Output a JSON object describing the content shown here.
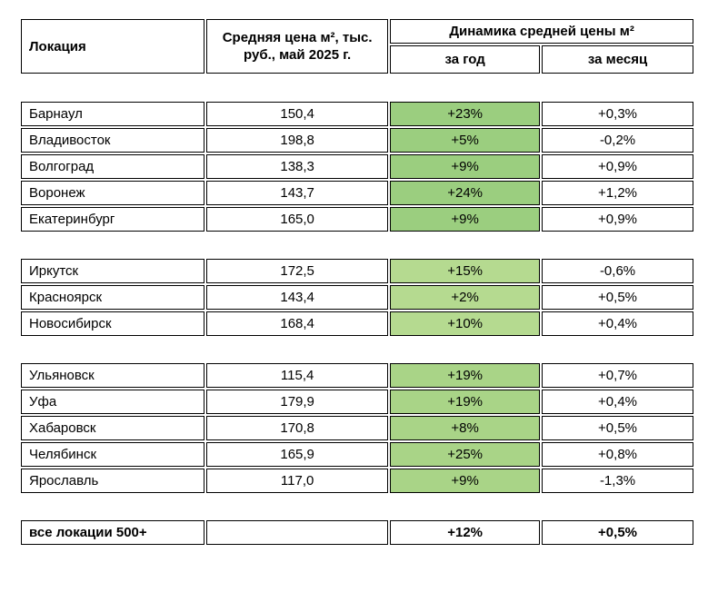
{
  "colors": {
    "border": "#000000",
    "month_yellow": "#F7E794",
    "group_greens": [
      "#9BCE7F",
      "#B5DA90",
      "#A9D487"
    ],
    "text": "#000000",
    "background": "#FFFFFF"
  },
  "chart_data": {
    "type": "table",
    "header": {
      "location": "Локация",
      "avg_price": "Средняя цена м², тыс. руб., май 2025 г.",
      "dynamics": "Динамика средней цены м²",
      "year": "за год",
      "month": "за месяц"
    },
    "groups": [
      {
        "rows": [
          {
            "location": "Барнаул",
            "price": "150,4",
            "yoy": "+23%",
            "mom": "+0,3%"
          },
          {
            "location": "Владивосток",
            "price": "198,8",
            "yoy": "+5%",
            "mom": "-0,2%"
          },
          {
            "location": "Волгоград",
            "price": "138,3",
            "yoy": "+9%",
            "mom": "+0,9%"
          },
          {
            "location": "Воронеж",
            "price": "143,7",
            "yoy": "+24%",
            "mom": "+1,2%"
          },
          {
            "location": "Екатеринбург",
            "price": "165,0",
            "yoy": "+9%",
            "mom": "+0,9%"
          }
        ]
      },
      {
        "rows": [
          {
            "location": "Иркутск",
            "price": "172,5",
            "yoy": "+15%",
            "mom": "-0,6%"
          },
          {
            "location": "Красноярск",
            "price": "143,4",
            "yoy": "+2%",
            "mom": "+0,5%"
          },
          {
            "location": "Новосибирск",
            "price": "168,4",
            "yoy": "+10%",
            "mom": "+0,4%"
          }
        ]
      },
      {
        "rows": [
          {
            "location": "Ульяновск",
            "price": "115,4",
            "yoy": "+19%",
            "mom": "+0,7%"
          },
          {
            "location": "Уфа",
            "price": "179,9",
            "yoy": "+19%",
            "mom": "+0,4%"
          },
          {
            "location": "Хабаровск",
            "price": "170,8",
            "yoy": "+8%",
            "mom": "+0,5%"
          },
          {
            "location": "Челябинск",
            "price": "165,9",
            "yoy": "+25%",
            "mom": "+0,8%"
          },
          {
            "location": "Ярославль",
            "price": "117,0",
            "yoy": "+9%",
            "mom": "-1,3%"
          }
        ]
      }
    ],
    "total": {
      "label": "все локации 500+",
      "price": "",
      "yoy": "+12%",
      "mom": "+0,5%"
    }
  }
}
